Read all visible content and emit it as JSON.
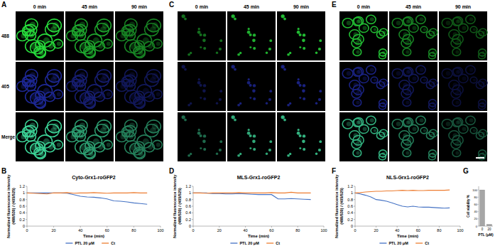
{
  "panel_labels": [
    "A",
    "B",
    "C",
    "D",
    "E",
    "F",
    "G"
  ],
  "image_panels": [
    {
      "columns": [
        "0 min",
        "45 min",
        "90 min"
      ],
      "rows": [
        "488",
        "405",
        "Merge"
      ]
    },
    {
      "columns": [
        "0 min",
        "45 min",
        "90 min"
      ]
    },
    {
      "columns": [
        "0 min",
        "45 min",
        "90 min"
      ]
    }
  ],
  "chart_data": [
    {
      "type": "line",
      "title": "Cyto-Grx1-roGFP2",
      "x_label": "Time (min)",
      "y_label": [
        "Normalized fluorescence intensity",
        "(488/530) / (405/525)"
      ],
      "x": [
        0,
        5,
        10,
        15,
        20,
        25,
        30,
        35,
        40,
        45,
        50,
        55,
        60,
        65,
        70,
        75,
        80,
        85,
        90
      ],
      "series": [
        {
          "name": "PTL 20 μM",
          "color": "#4472c4",
          "values": [
            1,
            1,
            1,
            1,
            1,
            1,
            0.99,
            0.95,
            0.9,
            0.88,
            0.87,
            0.85,
            0.82,
            0.76,
            0.75,
            0.73,
            0.7,
            0.68,
            0.66
          ]
        },
        {
          "name": "Ct",
          "color": "#ed7d31",
          "values": [
            1,
            0.99,
            0.98,
            0.97,
            1,
            1,
            1.01,
            0.99,
            1,
            1,
            1.01,
            1,
            0.99,
            1,
            1,
            1,
            1.01,
            1,
            1
          ]
        }
      ],
      "xlim": [
        0,
        100
      ],
      "xticks": [
        0,
        20,
        40,
        60,
        80,
        100
      ],
      "ylim": [
        0,
        1.2
      ],
      "yticks": [
        0,
        0.2,
        0.4,
        0.6,
        0.8,
        1,
        1.2
      ],
      "legend": "bottom"
    },
    {
      "type": "line",
      "title": "MLS-Grx1-roGFP2",
      "x_label": "Time (min)",
      "y_label": [
        "Normalized fluorescence intensity",
        "(488/530) / (405/525)"
      ],
      "x": [
        0,
        5,
        10,
        15,
        20,
        25,
        30,
        35,
        40,
        45,
        50,
        55,
        60,
        65,
        70,
        75,
        80,
        85,
        90
      ],
      "series": [
        {
          "name": "PTL 20 μM",
          "color": "#4472c4",
          "values": [
            1,
            1,
            1,
            0.98,
            0.98,
            0.97,
            0.97,
            0.98,
            0.97,
            0.96,
            0.95,
            0.95,
            0.95,
            0.82,
            0.82,
            0.83,
            0.82,
            0.81,
            0.8
          ]
        },
        {
          "name": "Ct",
          "color": "#ed7d31",
          "values": [
            1,
            1,
            0.99,
            1,
            1,
            1,
            1,
            1.01,
            1,
            1,
            1,
            1,
            1.01,
            1,
            1,
            1.02,
            1,
            1,
            1
          ]
        }
      ],
      "xlim": [
        0,
        100
      ],
      "xticks": [
        0,
        20,
        40,
        60,
        80,
        100
      ],
      "ylim": [
        0,
        1.2
      ],
      "yticks": [
        0,
        0.2,
        0.4,
        0.6,
        0.8,
        1,
        1.2
      ],
      "legend": "bottom"
    },
    {
      "type": "line",
      "title": "NLS-Grx1-roGFP2",
      "x_label": "Time (min)",
      "y_label": [
        "Normalized fluorescence intensity",
        "(488/530) / (405/525)"
      ],
      "x": [
        0,
        5,
        10,
        15,
        20,
        25,
        30,
        35,
        40,
        45,
        50,
        55,
        60,
        65,
        70,
        75,
        80,
        85,
        90
      ],
      "series": [
        {
          "name": "PTL 20 μM",
          "color": "#4472c4",
          "values": [
            1,
            0.97,
            0.93,
            0.88,
            0.8,
            0.78,
            0.75,
            0.7,
            0.65,
            0.6,
            0.58,
            0.6,
            0.58,
            0.57,
            0.57,
            0.56,
            0.55,
            0.54,
            0.55
          ]
        },
        {
          "name": "Ct",
          "color": "#ed7d31",
          "values": [
            1,
            1.01,
            1.03,
            1.04,
            1.05,
            1.05,
            1.06,
            1.06,
            1.07,
            1.08,
            1.07,
            1.08,
            1.07,
            1.07,
            1.08,
            1.08,
            1.08,
            1.08,
            1.09
          ]
        }
      ],
      "xlim": [
        0,
        100
      ],
      "xticks": [
        0,
        20,
        40,
        60,
        80,
        100
      ],
      "ylim": [
        0,
        1.2
      ],
      "yticks": [
        0,
        0.2,
        0.4,
        0.6,
        0.8,
        1,
        1.2
      ],
      "legend": "bottom"
    },
    {
      "type": "bar",
      "x_label": "PTL (μM)",
      "y_label": "Cell viability %",
      "categories": [
        "0",
        "20"
      ],
      "values": [
        100,
        5
      ],
      "color": "#a6a6a6",
      "ylim": [
        0,
        110
      ],
      "yticks": [
        0,
        20,
        40,
        60,
        80,
        100
      ]
    }
  ]
}
